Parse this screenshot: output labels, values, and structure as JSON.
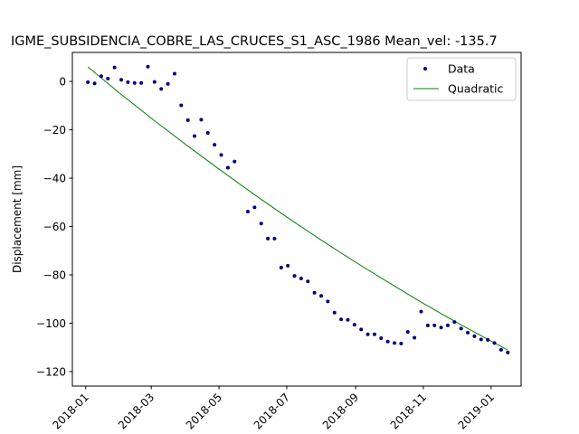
{
  "chart_data": {
    "type": "scatter",
    "title": "IGME_SUBSIDENCIA_COBRE_LAS_CRUCES_S1_ASC_1986     Mean_vel: -135.7",
    "xlabel": "",
    "ylabel": "Displacement [mm]",
    "x_axis": "date",
    "xlim": [
      "2017-12-20",
      "2019-01-28"
    ],
    "ylim": [
      -126,
      12
    ],
    "yticks": [
      0,
      -20,
      -40,
      -60,
      -80,
      -100,
      -120
    ],
    "xticks": [
      "2018-01",
      "2018-03",
      "2018-05",
      "2018-07",
      "2018-09",
      "2018-11",
      "2019-01"
    ],
    "grid": false,
    "legend_position": "top-right",
    "legend": [
      "Data",
      "Quadratic"
    ],
    "series": [
      {
        "name": "Data",
        "kind": "scatter",
        "color": "#00007f",
        "x": [
          "2018-01-03",
          "2018-01-09",
          "2018-01-15",
          "2018-01-21",
          "2018-01-27",
          "2018-02-02",
          "2018-02-08",
          "2018-02-14",
          "2018-02-20",
          "2018-02-26",
          "2018-03-04",
          "2018-03-10",
          "2018-03-16",
          "2018-03-22",
          "2018-03-28",
          "2018-04-03",
          "2018-04-09",
          "2018-04-15",
          "2018-04-21",
          "2018-04-27",
          "2018-05-03",
          "2018-05-09",
          "2018-05-15",
          "2018-05-27",
          "2018-06-02",
          "2018-06-08",
          "2018-06-14",
          "2018-06-20",
          "2018-06-26",
          "2018-07-02",
          "2018-07-08",
          "2018-07-14",
          "2018-07-20",
          "2018-07-26",
          "2018-08-01",
          "2018-08-07",
          "2018-08-13",
          "2018-08-19",
          "2018-08-25",
          "2018-08-31",
          "2018-09-06",
          "2018-09-12",
          "2018-09-18",
          "2018-09-24",
          "2018-09-30",
          "2018-10-06",
          "2018-10-12",
          "2018-10-18",
          "2018-10-24",
          "2018-10-30",
          "2018-11-05",
          "2018-11-11",
          "2018-11-17",
          "2018-11-23",
          "2018-11-29",
          "2018-12-05",
          "2018-12-11",
          "2018-12-17",
          "2018-12-23",
          "2018-12-29",
          "2019-01-04",
          "2019-01-10",
          "2019-01-16"
        ],
        "y": [
          -0.3,
          -0.8,
          2.2,
          1.2,
          5.8,
          0.7,
          -0.3,
          -0.6,
          -0.6,
          6.1,
          -0.2,
          -3.1,
          -1.0,
          3.2,
          -9.9,
          -16.0,
          -22.6,
          -15.8,
          -21.3,
          -26.2,
          -30.4,
          -35.7,
          -33.1,
          -53.8,
          -52.1,
          -58.8,
          -65.0,
          -65.0,
          -77.0,
          -76.2,
          -80.4,
          -81.5,
          -82.7,
          -87.4,
          -88.7,
          -91.0,
          -95.6,
          -98.4,
          -98.6,
          -100.6,
          -102.6,
          -104.6,
          -104.6,
          -106.2,
          -107.6,
          -108.2,
          -108.4,
          -103.6,
          -106.0,
          -95.2,
          -100.9,
          -100.9,
          -101.8,
          -100.9,
          -99.5,
          -102.2,
          -103.9,
          -105.4,
          -106.7,
          -106.9,
          -108.2,
          -111.0,
          -112.1
        ]
      },
      {
        "name": "Quadratic",
        "kind": "line",
        "color": "#008000",
        "x": [
          "2018-01-03",
          "2018-02-01",
          "2018-03-03",
          "2018-04-02",
          "2018-05-02",
          "2018-06-01",
          "2018-07-01",
          "2018-07-31",
          "2018-08-30",
          "2018-09-29",
          "2018-10-29",
          "2018-11-28",
          "2018-12-28",
          "2019-01-16"
        ],
        "y": [
          6.0,
          -5.0,
          -15.9,
          -26.4,
          -36.6,
          -46.5,
          -56.1,
          -65.3,
          -74.2,
          -82.7,
          -91.0,
          -98.9,
          -106.4,
          -111.1
        ]
      }
    ]
  }
}
